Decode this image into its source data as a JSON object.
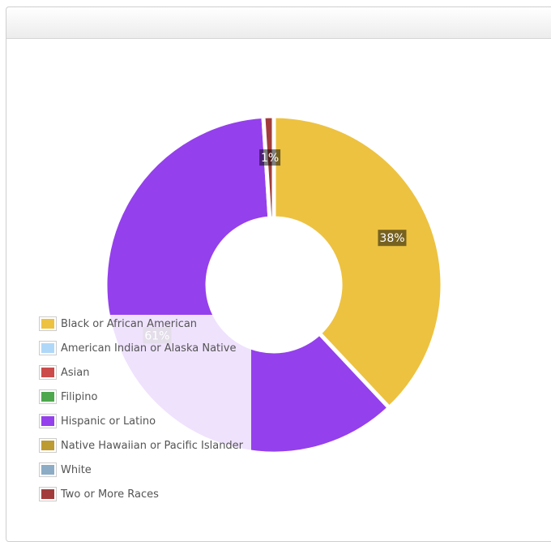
{
  "chart_data": {
    "type": "donut",
    "title": "",
    "slices": [
      {
        "label": "Black or African American",
        "value": 38,
        "color": "#EDC240",
        "data_label": "38%"
      },
      {
        "label": "American Indian or Alaska Native",
        "value": 0,
        "color": "#AFD8F8",
        "data_label": ""
      },
      {
        "label": "Asian",
        "value": 0,
        "color": "#CB4B4B",
        "data_label": ""
      },
      {
        "label": "Filipino",
        "value": 0,
        "color": "#4DA74D",
        "data_label": ""
      },
      {
        "label": "Hispanic or Latino",
        "value": 61,
        "color": "#9440ED",
        "data_label": "61%"
      },
      {
        "label": "Native Hawaiian or Pacific Islander",
        "value": 0,
        "color": "#BD9B33",
        "data_label": ""
      },
      {
        "label": "White",
        "value": 0,
        "color": "#8CACC6",
        "data_label": ""
      },
      {
        "label": "Two or More Races",
        "value": 1,
        "color": "#A23C3C",
        "data_label": "1%"
      }
    ],
    "legend_position": "bottom-left"
  }
}
